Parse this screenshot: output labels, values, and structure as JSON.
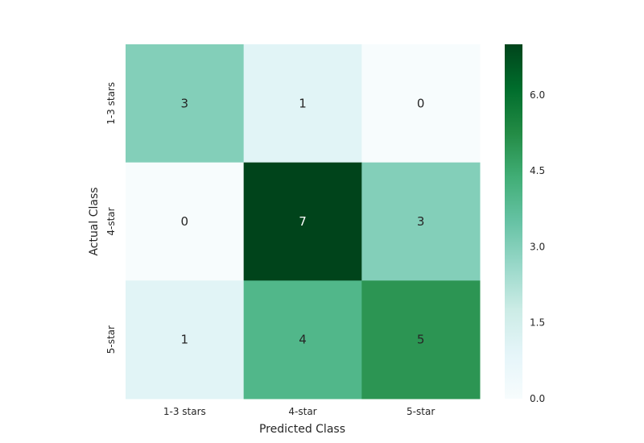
{
  "chart_data": {
    "type": "heatmap",
    "title": "",
    "xlabel": "Predicted Class",
    "ylabel": "Actual Class",
    "x_categories": [
      "1-3 stars",
      "4-star",
      "5-star"
    ],
    "y_categories": [
      "1-3 stars",
      "4-star",
      "5-star"
    ],
    "values": [
      [
        3,
        1,
        0
      ],
      [
        0,
        7,
        3
      ],
      [
        1,
        4,
        5
      ]
    ],
    "colorbar": {
      "range": [
        0,
        7
      ],
      "ticks": [
        "0.0",
        "1.5",
        "3.0",
        "4.5",
        "6.0"
      ],
      "colormap": "BuGn"
    },
    "grid": false
  }
}
